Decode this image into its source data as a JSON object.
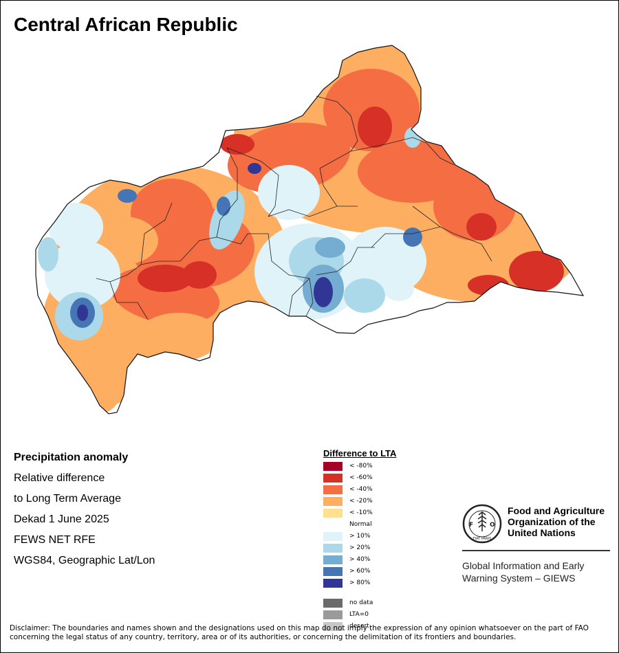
{
  "title": "Central African Republic",
  "info": {
    "heading": "Precipitation anomaly",
    "line1": "Relative difference",
    "line2": "to Long Term Average",
    "period": "Dekad 1 June 2025",
    "source": "FEWS NET RFE",
    "projection": "WGS84, Geographic Lat/Lon"
  },
  "legend": {
    "title": "Difference to LTA",
    "normal_label": "Normal",
    "dry": [
      {
        "label": "< -80%",
        "color": "#a50026"
      },
      {
        "label": "< -60%",
        "color": "#d73027"
      },
      {
        "label": "< -40%",
        "color": "#f46d43"
      },
      {
        "label": "< -20%",
        "color": "#fdae61"
      },
      {
        "label": "< -10%",
        "color": "#fee090"
      }
    ],
    "wet": [
      {
        "label": "> 10%",
        "color": "#e0f3f8"
      },
      {
        "label": "> 20%",
        "color": "#abd9e9"
      },
      {
        "label": "> 40%",
        "color": "#74add1"
      },
      {
        "label": "> 60%",
        "color": "#4575b4"
      },
      {
        "label": "> 80%",
        "color": "#313695"
      }
    ],
    "other": [
      {
        "label": "no data",
        "color": "#6b6b6b"
      },
      {
        "label": "LTA=0",
        "color": "#9a9a9a"
      },
      {
        "label": "desert",
        "color": "#c8c8c8"
      }
    ]
  },
  "org": {
    "name_line1": "Food and Agriculture",
    "name_line2": "Organization of the",
    "name_line3": "United Nations",
    "logo_text": "FAO",
    "motto": "FIAT PANIS",
    "system_line1": "Global Information and Early",
    "system_line2": "Warning System – GIEWS"
  },
  "disclaimer": "Disclaimer: The boundaries and names shown and the designations used on this map do not imply the expression of any opinion whatsoever on the part of FAO concerning the legal status of any country, territory, area or of its authorities, or concerning the delimitation of its frontiers and boundaries."
}
